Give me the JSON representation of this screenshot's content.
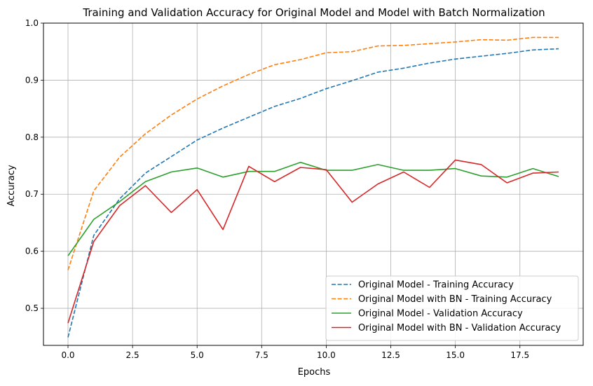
{
  "chart_data": {
    "type": "line",
    "title": "Training and Validation Accuracy for Original Model and Model with Batch Normalization",
    "xlabel": "Epochs",
    "ylabel": "Accuracy",
    "xlim": [
      -0.95,
      19.95
    ],
    "ylim": [
      0.435,
      1.0
    ],
    "xticks": [
      0.0,
      2.5,
      5.0,
      7.5,
      10.0,
      12.5,
      15.0,
      17.5
    ],
    "xtick_labels": [
      "0.0",
      "2.5",
      "5.0",
      "7.5",
      "10.0",
      "12.5",
      "15.0",
      "17.5"
    ],
    "yticks": [
      0.5,
      0.6,
      0.7,
      0.8,
      0.9,
      1.0
    ],
    "ytick_labels": [
      "0.5",
      "0.6",
      "0.7",
      "0.8",
      "0.9",
      "1.0"
    ],
    "grid": true,
    "legend_position": "lower-right",
    "x": [
      0,
      1,
      2,
      3,
      4,
      5,
      6,
      7,
      8,
      9,
      10,
      11,
      12,
      13,
      14,
      15,
      16,
      17,
      18,
      19
    ],
    "series": [
      {
        "name": "Original Model - Training Accuracy",
        "color": "#1f77b4",
        "dash": "dashed",
        "values": [
          0.449,
          0.628,
          0.692,
          0.737,
          0.766,
          0.795,
          0.816,
          0.835,
          0.854,
          0.868,
          0.885,
          0.899,
          0.914,
          0.921,
          0.93,
          0.937,
          0.942,
          0.947,
          0.953,
          0.955
        ]
      },
      {
        "name": "Original Model with BN - Training Accuracy",
        "color": "#ff7f0e",
        "dash": "dashed",
        "values": [
          0.567,
          0.706,
          0.765,
          0.806,
          0.839,
          0.867,
          0.89,
          0.91,
          0.927,
          0.936,
          0.948,
          0.95,
          0.96,
          0.961,
          0.964,
          0.967,
          0.971,
          0.97,
          0.975,
          0.975
        ]
      },
      {
        "name": "Original Model - Validation Accuracy",
        "color": "#2ca02c",
        "dash": "solid",
        "values": [
          0.592,
          0.656,
          0.687,
          0.722,
          0.739,
          0.746,
          0.73,
          0.74,
          0.74,
          0.756,
          0.742,
          0.742,
          0.752,
          0.742,
          0.742,
          0.745,
          0.732,
          0.73,
          0.745,
          0.731
        ]
      },
      {
        "name": "Original Model with BN - Validation Accuracy",
        "color": "#d62728",
        "dash": "solid",
        "values": [
          0.474,
          0.617,
          0.68,
          0.715,
          0.668,
          0.708,
          0.638,
          0.749,
          0.722,
          0.747,
          0.743,
          0.686,
          0.718,
          0.739,
          0.712,
          0.76,
          0.752,
          0.72,
          0.737,
          0.739
        ]
      }
    ]
  }
}
